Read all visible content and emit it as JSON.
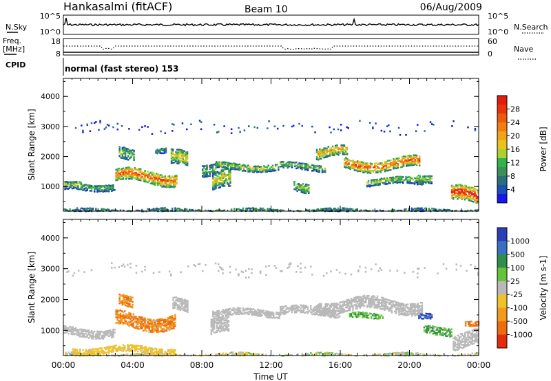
{
  "header": {
    "station": "Hankasalmi (fitACF)",
    "beam": "Beam 10",
    "date": "06/Aug/2009"
  },
  "panels": {
    "nsky": {
      "left_label": "N.Sky",
      "right_label": "N.Search",
      "left_ticks": [
        "10^5",
        "10^0"
      ],
      "right_ticks": [
        "10^5",
        "10^0"
      ]
    },
    "freq": {
      "label_line1": "Freq.",
      "label_line2": "[MHz]",
      "right_label": "Nave",
      "left_ticks": [
        "18",
        "8"
      ],
      "right_ticks": [
        "60",
        "0"
      ]
    },
    "cpid": {
      "label": "CPID",
      "text": "normal (fast stereo) 153"
    }
  },
  "chart_data": [
    {
      "type": "heatmap",
      "ylabel": "Slant Range [km]",
      "xlabel": "",
      "x_ticks": [
        "00:00",
        "04:00",
        "08:00",
        "12:00",
        "16:00",
        "20:00",
        "00:00"
      ],
      "xlim_hours": [
        0,
        24
      ],
      "ylim": [
        180,
        4600
      ],
      "y_ticks": [
        1000,
        2000,
        3000,
        4000
      ],
      "colorbar": {
        "label": "Power [dB]",
        "ticks": [
          "4",
          "8",
          "12",
          "16",
          "20",
          "24",
          "28"
        ],
        "colors": [
          "#1818e8",
          "#1c4fb8",
          "#2b6f7a",
          "#3c8e5a",
          "#33b24a",
          "#a9d12f",
          "#e8c21f",
          "#f2a419",
          "#f07e12",
          "#ec5a0e",
          "#e8320c",
          "#e11c0b"
        ]
      },
      "features": [
        {
          "t0": 0.0,
          "t1": 24.0,
          "r": 230,
          "thick": 120,
          "level": 0.3,
          "sub": 0
        },
        {
          "t0": 0.05,
          "t1": 1.1,
          "r": 1000,
          "thick": 250,
          "level": 0.45,
          "sub": 1
        },
        {
          "t0": 1.0,
          "t1": 3.0,
          "r": 1050,
          "thick": 220,
          "level": 0.35,
          "sub": 2
        },
        {
          "t0": 3.0,
          "t1": 6.6,
          "r": 1350,
          "thick": 400,
          "level": 0.75,
          "sub": 3
        },
        {
          "t0": 3.2,
          "t1": 4.1,
          "r": 2050,
          "thick": 420,
          "level": 0.4,
          "sub": 4
        },
        {
          "t0": 5.3,
          "t1": 6.0,
          "r": 2250,
          "thick": 180,
          "level": 0.3,
          "sub": 5
        },
        {
          "t0": 6.2,
          "t1": 7.2,
          "r": 1900,
          "thick": 500,
          "level": 0.55,
          "sub": 6
        },
        {
          "t0": 8.0,
          "t1": 8.8,
          "r": 1700,
          "thick": 420,
          "level": 0.35,
          "sub": 7
        },
        {
          "t0": 8.6,
          "t1": 9.7,
          "r": 1150,
          "thick": 600,
          "level": 0.5,
          "sub": 8
        },
        {
          "t0": 8.8,
          "t1": 12.5,
          "r": 1700,
          "thick": 220,
          "level": 0.45,
          "sub": 9
        },
        {
          "t0": 12.5,
          "t1": 15.2,
          "r": 1700,
          "thick": 230,
          "level": 0.4,
          "sub": 10
        },
        {
          "t0": 13.3,
          "t1": 14.2,
          "r": 1050,
          "thick": 300,
          "level": 0.45,
          "sub": 11
        },
        {
          "t0": 14.6,
          "t1": 16.4,
          "r": 2150,
          "thick": 350,
          "level": 0.6,
          "sub": 12
        },
        {
          "t0": 16.2,
          "t1": 20.6,
          "r": 1800,
          "thick": 380,
          "level": 0.75,
          "sub": 13
        },
        {
          "t0": 17.5,
          "t1": 20.8,
          "r": 1200,
          "thick": 220,
          "level": 0.45,
          "sub": 14
        },
        {
          "t0": 20.4,
          "t1": 21.3,
          "r": 1350,
          "thick": 250,
          "level": 0.45,
          "sub": 15
        },
        {
          "t0": 22.4,
          "t1": 24.0,
          "r": 700,
          "thick": 500,
          "level": 0.9,
          "sub": 16
        },
        {
          "t0": 0.0,
          "t1": 24.0,
          "r": 3000,
          "thick": 300,
          "level": 0.15,
          "sub": 17
        }
      ]
    },
    {
      "type": "heatmap",
      "ylabel": "Slant Range [km]",
      "xlabel": "Time UT",
      "x_ticks": [
        "00:00",
        "04:00",
        "08:00",
        "12:00",
        "16:00",
        "20:00",
        "00:00"
      ],
      "xlim_hours": [
        0,
        24
      ],
      "ylim": [
        180,
        4600
      ],
      "y_ticks": [
        1000,
        2000,
        3000,
        4000
      ],
      "colorbar": {
        "label": "Velocity [m s-1]",
        "ticks": [
          "1000",
          "500",
          "100",
          "25",
          "-25",
          "-100",
          "-500",
          "-1000"
        ],
        "colors": [
          "#2a3fb7",
          "#3b6fc4",
          "#2f8f4a",
          "#64c23d",
          "#b9b9b9",
          "#f0c22a",
          "#f19a1b",
          "#ee6c10",
          "#e62b0d"
        ]
      },
      "features": [
        {
          "t0": 0.0,
          "t1": 24.0,
          "r": 230,
          "thick": 140,
          "vel": "mixed",
          "sub": 20
        },
        {
          "t0": 0.0,
          "t1": 3.0,
          "r": 1000,
          "thick": 280,
          "vel": "gray",
          "sub": 21
        },
        {
          "t0": 0.5,
          "t1": 6.5,
          "r": 400,
          "thick": 220,
          "vel": "yellow",
          "sub": 22
        },
        {
          "t0": 3.0,
          "t1": 6.5,
          "r": 1350,
          "thick": 450,
          "vel": "orange",
          "sub": 23
        },
        {
          "t0": 3.2,
          "t1": 4.0,
          "r": 2050,
          "thick": 350,
          "vel": "orange",
          "sub": 24
        },
        {
          "t0": 6.3,
          "t1": 7.2,
          "r": 1800,
          "thick": 420,
          "vel": "gray",
          "sub": 25
        },
        {
          "t0": 8.6,
          "t1": 12.5,
          "r": 1600,
          "thick": 220,
          "vel": "gray",
          "sub": 26
        },
        {
          "t0": 8.5,
          "t1": 9.6,
          "r": 1100,
          "thick": 500,
          "vel": "gray",
          "sub": 27
        },
        {
          "t0": 12.5,
          "t1": 16.0,
          "r": 1650,
          "thick": 250,
          "vel": "gray",
          "sub": 28
        },
        {
          "t0": 14.6,
          "t1": 20.8,
          "r": 1850,
          "thick": 400,
          "vel": "gray",
          "sub": 29
        },
        {
          "t0": 16.5,
          "t1": 18.5,
          "r": 1500,
          "thick": 180,
          "vel": "green",
          "sub": 30
        },
        {
          "t0": 20.5,
          "t1": 21.3,
          "r": 1450,
          "thick": 180,
          "vel": "blue",
          "sub": 31
        },
        {
          "t0": 20.8,
          "t1": 22.5,
          "r": 1050,
          "thick": 250,
          "vel": "green",
          "sub": 32
        },
        {
          "t0": 22.5,
          "t1": 24.0,
          "r": 700,
          "thick": 500,
          "vel": "gray",
          "sub": 33
        },
        {
          "t0": 23.2,
          "t1": 24.0,
          "r": 1200,
          "thick": 180,
          "vel": "orange",
          "sub": 34
        },
        {
          "t0": 0.0,
          "t1": 24.0,
          "r": 3000,
          "thick": 300,
          "vel": "gray",
          "sub": 35
        }
      ]
    }
  ]
}
